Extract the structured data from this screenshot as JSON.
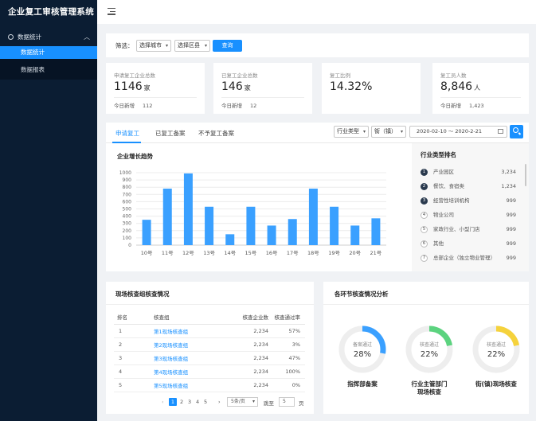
{
  "app": {
    "title": "企业复工审核管理系统"
  },
  "sidebar": {
    "group_label": "数据统计",
    "items": [
      {
        "label": "数据统计",
        "active": true
      },
      {
        "label": "数据报表",
        "active": false
      }
    ]
  },
  "filter": {
    "label": "筛选：",
    "city_select": "选择城市",
    "district_select": "选择区县",
    "query_button": "查询"
  },
  "stats": [
    {
      "title": "申请复工企业总数",
      "value": "1146",
      "unit": "家",
      "foot_label": "今日新增",
      "foot_value": "112"
    },
    {
      "title": "已复工企业总数",
      "value": "146",
      "unit": "家",
      "foot_label": "今日新增",
      "foot_value": "12"
    },
    {
      "title": "复工比例",
      "value": "14.32%",
      "unit": "",
      "foot_label": "",
      "foot_value": ""
    },
    {
      "title": "复工员人数",
      "value": "8,846",
      "unit": "人",
      "foot_label": "今日新增",
      "foot_value": "1,423"
    }
  ],
  "tabs": [
    {
      "label": "申请复工",
      "active": true
    },
    {
      "label": "已复工备案",
      "active": false
    },
    {
      "label": "不予复工备案",
      "active": false
    }
  ],
  "toolbar": {
    "industry_select": "行业类型",
    "street_select": "街（镇）",
    "date_range": "2020-02-10  ～  2020-2-21"
  },
  "growth_chart_title": "企业增长趋势",
  "chart_data": {
    "type": "bar",
    "title": "企业增长趋势",
    "categories": [
      "10号",
      "11号",
      "12号",
      "13号",
      "14号",
      "15号",
      "16号",
      "17号",
      "18号",
      "19号",
      "20号",
      "21号"
    ],
    "values": [
      350,
      780,
      990,
      530,
      150,
      530,
      270,
      360,
      780,
      530,
      270,
      370
    ],
    "ylim": [
      0,
      1000
    ],
    "yticks": [
      "0",
      "100",
      "200",
      "300",
      "400",
      "500",
      "600",
      "700",
      "800",
      "900",
      "1000"
    ],
    "grid": true,
    "color": "#3aa0ff"
  },
  "ranking": {
    "title": "行业类型排名",
    "rows": [
      {
        "rank": "1",
        "name": "产业园区",
        "value": "3,234"
      },
      {
        "rank": "2",
        "name": "餐饮、食宿类",
        "value": "1,234"
      },
      {
        "rank": "3",
        "name": "经营性培训机构",
        "value": "999"
      },
      {
        "rank": "4",
        "name": "物业公司",
        "value": "999"
      },
      {
        "rank": "5",
        "name": "家政行业、小型门店",
        "value": "999"
      },
      {
        "rank": "6",
        "name": "其他",
        "value": "999"
      },
      {
        "rank": "7",
        "name": "总部企业（独立物业管理）",
        "value": "999"
      }
    ]
  },
  "inspection": {
    "title": "现场核查组核查情况",
    "headers": [
      "排名",
      "核查组",
      "核查企业数",
      "核查通过率"
    ],
    "rows": [
      {
        "rank": "1",
        "group": "第1现场核查组",
        "count": "2,234",
        "rate": "57%"
      },
      {
        "rank": "2",
        "group": "第2现场核查组",
        "count": "2,234",
        "rate": "3%"
      },
      {
        "rank": "3",
        "group": "第3现场核查组",
        "count": "2,234",
        "rate": "47%"
      },
      {
        "rank": "4",
        "group": "第4现场核查组",
        "count": "2,234",
        "rate": "100%"
      },
      {
        "rank": "5",
        "group": "第5现场核查组",
        "count": "2,234",
        "rate": "0%"
      }
    ],
    "pagination": {
      "prev": "‹",
      "next": "›",
      "pages": [
        "1",
        "2",
        "3",
        "4",
        "5"
      ],
      "page_size": "5条/页",
      "goto_label": "跳至",
      "goto_value": "5",
      "page_unit": "页"
    }
  },
  "stages": {
    "title": "各环节核查情况分析",
    "items": [
      {
        "inner": "备案通过",
        "percent": "28%",
        "fraction": 0.28,
        "color": "#3aa0ff",
        "label_lines": [
          "指挥部备案"
        ]
      },
      {
        "inner": "核查通过",
        "percent": "22%",
        "fraction": 0.22,
        "color": "#5cd37f",
        "label_lines": [
          "行业主管部门",
          "现场核查"
        ]
      },
      {
        "inner": "核查通过",
        "percent": "22%",
        "fraction": 0.22,
        "color": "#f5d23c",
        "label_lines": [
          "街(镇)现场核查"
        ]
      }
    ]
  }
}
